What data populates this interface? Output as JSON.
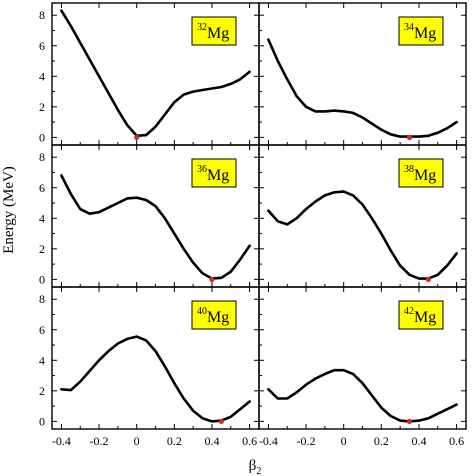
{
  "chart_data": {
    "type": "line",
    "xlabel": "β",
    "xlabel_sub": "2",
    "ylabel": "Energy (MeV)",
    "xlim": [
      -0.45,
      0.65
    ],
    "ylim": [
      -0.5,
      8.8
    ],
    "x_ticks": [
      "-0.4",
      "-0.2",
      "0",
      "0.2",
      "0.4",
      "0.6"
    ],
    "y_ticks": [
      "0",
      "2",
      "4",
      "6",
      "8"
    ],
    "grid": false,
    "layout": "3 rows x 2 columns, shared axes",
    "curve_color": "#000000",
    "minimum_marker_color": "#e0241b",
    "label_box_color": "#ffff00",
    "panels": [
      {
        "mass": "32",
        "element": "Mg",
        "minimum": {
          "x": 0.0,
          "y": 0.0
        },
        "x": [
          -0.4,
          -0.35,
          -0.3,
          -0.25,
          -0.2,
          -0.15,
          -0.1,
          -0.05,
          0.0,
          0.05,
          0.1,
          0.15,
          0.2,
          0.25,
          0.3,
          0.35,
          0.4,
          0.45,
          0.5,
          0.55,
          0.6
        ],
        "y": [
          8.3,
          7.3,
          6.2,
          5.1,
          4.0,
          2.9,
          1.8,
          0.8,
          0.1,
          0.15,
          0.7,
          1.5,
          2.3,
          2.8,
          3.0,
          3.1,
          3.2,
          3.3,
          3.5,
          3.8,
          4.3
        ]
      },
      {
        "mass": "34",
        "element": "Mg",
        "minimum": {
          "x": 0.35,
          "y": 0.0
        },
        "x": [
          -0.4,
          -0.35,
          -0.3,
          -0.25,
          -0.2,
          -0.15,
          -0.1,
          -0.05,
          0.0,
          0.05,
          0.1,
          0.15,
          0.2,
          0.25,
          0.3,
          0.35,
          0.4,
          0.45,
          0.5,
          0.55,
          0.6
        ],
        "y": [
          6.4,
          5.0,
          3.8,
          2.7,
          2.0,
          1.7,
          1.7,
          1.75,
          1.7,
          1.6,
          1.3,
          0.9,
          0.5,
          0.2,
          0.05,
          0.05,
          0.05,
          0.1,
          0.3,
          0.6,
          1.0
        ]
      },
      {
        "mass": "36",
        "element": "Mg",
        "minimum": {
          "x": 0.4,
          "y": 0.0
        },
        "x": [
          -0.4,
          -0.35,
          -0.3,
          -0.25,
          -0.2,
          -0.15,
          -0.1,
          -0.05,
          0.0,
          0.05,
          0.1,
          0.15,
          0.2,
          0.25,
          0.3,
          0.35,
          0.4,
          0.45,
          0.5,
          0.55,
          0.6
        ],
        "y": [
          6.8,
          5.6,
          4.6,
          4.3,
          4.4,
          4.7,
          5.0,
          5.3,
          5.35,
          5.2,
          4.8,
          4.0,
          3.0,
          2.0,
          1.1,
          0.4,
          0.05,
          0.1,
          0.5,
          1.3,
          2.2
        ]
      },
      {
        "mass": "38",
        "element": "Mg",
        "minimum": {
          "x": 0.45,
          "y": 0.0
        },
        "x": [
          -0.4,
          -0.35,
          -0.3,
          -0.25,
          -0.2,
          -0.15,
          -0.1,
          -0.05,
          0.0,
          0.05,
          0.1,
          0.15,
          0.2,
          0.25,
          0.3,
          0.35,
          0.4,
          0.45,
          0.5,
          0.55,
          0.6
        ],
        "y": [
          4.5,
          3.8,
          3.6,
          4.0,
          4.6,
          5.1,
          5.5,
          5.7,
          5.75,
          5.5,
          4.9,
          4.0,
          3.0,
          1.9,
          0.9,
          0.3,
          0.05,
          0.05,
          0.3,
          0.9,
          1.7
        ]
      },
      {
        "mass": "40",
        "element": "Mg",
        "minimum": {
          "x": 0.45,
          "y": 0.0
        },
        "x": [
          -0.4,
          -0.35,
          -0.3,
          -0.25,
          -0.2,
          -0.15,
          -0.1,
          -0.05,
          0.0,
          0.05,
          0.1,
          0.15,
          0.2,
          0.25,
          0.3,
          0.35,
          0.4,
          0.45,
          0.5,
          0.55,
          0.6
        ],
        "y": [
          2.1,
          2.05,
          2.6,
          3.3,
          4.0,
          4.6,
          5.1,
          5.4,
          5.55,
          5.3,
          4.6,
          3.6,
          2.5,
          1.5,
          0.7,
          0.2,
          0.0,
          0.05,
          0.3,
          0.8,
          1.3
        ]
      },
      {
        "mass": "42",
        "element": "Mg",
        "minimum": {
          "x": 0.35,
          "y": 0.0
        },
        "x": [
          -0.4,
          -0.35,
          -0.3,
          -0.25,
          -0.2,
          -0.15,
          -0.1,
          -0.05,
          0.0,
          0.05,
          0.1,
          0.15,
          0.2,
          0.25,
          0.3,
          0.35,
          0.4,
          0.45,
          0.5,
          0.55,
          0.6
        ],
        "y": [
          2.1,
          1.5,
          1.5,
          1.9,
          2.4,
          2.8,
          3.1,
          3.35,
          3.35,
          3.1,
          2.5,
          1.7,
          0.9,
          0.35,
          0.05,
          0.0,
          0.05,
          0.2,
          0.5,
          0.8,
          1.1
        ]
      }
    ]
  }
}
